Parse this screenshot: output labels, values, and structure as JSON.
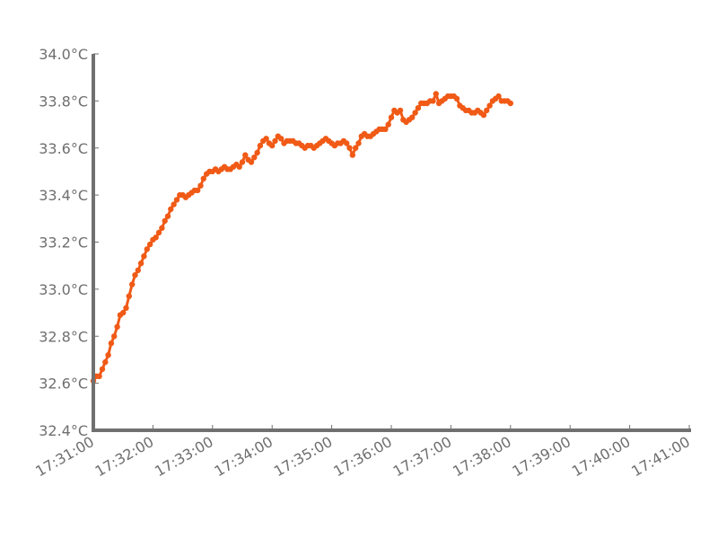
{
  "chart_data": {
    "type": "scatter",
    "title": "",
    "xlabel": "",
    "ylabel": "",
    "x_axis": {
      "type": "time",
      "range": [
        "17:31:00",
        "17:41:00"
      ],
      "ticks": [
        "17:31:00",
        "17:32:00",
        "17:33:00",
        "17:34:00",
        "17:35:00",
        "17:36:00",
        "17:37:00",
        "17:38:00",
        "17:39:00",
        "17:40:00",
        "17:41:00"
      ]
    },
    "y_axis": {
      "range": [
        32.4,
        34.0
      ],
      "ticks": [
        32.4,
        32.6,
        32.8,
        33.0,
        33.2,
        33.4,
        33.6,
        33.8,
        34.0
      ],
      "tick_labels": [
        "32.4°C",
        "32.6°C",
        "32.8°C",
        "33.0°C",
        "33.2°C",
        "33.4°C",
        "33.6°C",
        "33.8°C",
        "34.0°C"
      ]
    },
    "grid": false,
    "legend": "none",
    "series": [
      {
        "color": "#f05a16",
        "points": [
          [
            "17:31:00",
            32.61
          ],
          [
            "17:31:03",
            32.63
          ],
          [
            "17:31:06",
            32.63
          ],
          [
            "17:31:09",
            32.66
          ],
          [
            "17:31:12",
            32.69
          ],
          [
            "17:31:15",
            32.72
          ],
          [
            "17:31:18",
            32.77
          ],
          [
            "17:31:21",
            32.8
          ],
          [
            "17:31:24",
            32.84
          ],
          [
            "17:31:27",
            32.89
          ],
          [
            "17:31:30",
            32.9
          ],
          [
            "17:31:33",
            32.92
          ],
          [
            "17:31:36",
            32.97
          ],
          [
            "17:31:39",
            33.02
          ],
          [
            "17:31:42",
            33.06
          ],
          [
            "17:31:45",
            33.08
          ],
          [
            "17:31:48",
            33.11
          ],
          [
            "17:31:51",
            33.14
          ],
          [
            "17:31:54",
            33.17
          ],
          [
            "17:31:57",
            33.19
          ],
          [
            "17:32:00",
            33.21
          ],
          [
            "17:32:03",
            33.22
          ],
          [
            "17:32:06",
            33.24
          ],
          [
            "17:32:09",
            33.26
          ],
          [
            "17:32:12",
            33.29
          ],
          [
            "17:32:15",
            33.31
          ],
          [
            "17:32:18",
            33.34
          ],
          [
            "17:32:21",
            33.36
          ],
          [
            "17:32:24",
            33.38
          ],
          [
            "17:32:27",
            33.4
          ],
          [
            "17:32:30",
            33.4
          ],
          [
            "17:32:33",
            33.39
          ],
          [
            "17:32:36",
            33.4
          ],
          [
            "17:32:39",
            33.41
          ],
          [
            "17:32:42",
            33.42
          ],
          [
            "17:32:45",
            33.42
          ],
          [
            "17:32:48",
            33.44
          ],
          [
            "17:32:51",
            33.47
          ],
          [
            "17:32:54",
            33.49
          ],
          [
            "17:32:57",
            33.5
          ],
          [
            "17:33:00",
            33.5
          ],
          [
            "17:33:03",
            33.51
          ],
          [
            "17:33:06",
            33.5
          ],
          [
            "17:33:09",
            33.51
          ],
          [
            "17:33:12",
            33.52
          ],
          [
            "17:33:15",
            33.51
          ],
          [
            "17:33:18",
            33.51
          ],
          [
            "17:33:21",
            33.52
          ],
          [
            "17:33:24",
            33.53
          ],
          [
            "17:33:27",
            33.52
          ],
          [
            "17:33:30",
            33.54
          ],
          [
            "17:33:33",
            33.57
          ],
          [
            "17:33:36",
            33.55
          ],
          [
            "17:33:39",
            33.54
          ],
          [
            "17:33:42",
            33.56
          ],
          [
            "17:33:45",
            33.58
          ],
          [
            "17:33:48",
            33.61
          ],
          [
            "17:33:51",
            33.63
          ],
          [
            "17:33:54",
            33.64
          ],
          [
            "17:33:57",
            33.62
          ],
          [
            "17:34:00",
            33.61
          ],
          [
            "17:34:03",
            33.63
          ],
          [
            "17:34:06",
            33.65
          ],
          [
            "17:34:09",
            33.64
          ],
          [
            "17:34:12",
            33.62
          ],
          [
            "17:34:15",
            33.63
          ],
          [
            "17:34:18",
            33.63
          ],
          [
            "17:34:21",
            33.63
          ],
          [
            "17:34:24",
            33.62
          ],
          [
            "17:34:27",
            33.62
          ],
          [
            "17:34:30",
            33.61
          ],
          [
            "17:34:33",
            33.6
          ],
          [
            "17:34:36",
            33.61
          ],
          [
            "17:34:39",
            33.61
          ],
          [
            "17:34:42",
            33.6
          ],
          [
            "17:34:45",
            33.61
          ],
          [
            "17:34:48",
            33.62
          ],
          [
            "17:34:51",
            33.63
          ],
          [
            "17:34:54",
            33.64
          ],
          [
            "17:34:57",
            33.63
          ],
          [
            "17:35:00",
            33.62
          ],
          [
            "17:35:03",
            33.61
          ],
          [
            "17:35:06",
            33.62
          ],
          [
            "17:35:09",
            33.62
          ],
          [
            "17:35:12",
            33.63
          ],
          [
            "17:35:15",
            33.62
          ],
          [
            "17:35:18",
            33.6
          ],
          [
            "17:35:21",
            33.57
          ],
          [
            "17:35:24",
            33.6
          ],
          [
            "17:35:27",
            33.62
          ],
          [
            "17:35:30",
            33.65
          ],
          [
            "17:35:33",
            33.66
          ],
          [
            "17:35:36",
            33.65
          ],
          [
            "17:35:39",
            33.65
          ],
          [
            "17:35:42",
            33.66
          ],
          [
            "17:35:45",
            33.67
          ],
          [
            "17:35:48",
            33.68
          ],
          [
            "17:35:51",
            33.68
          ],
          [
            "17:35:54",
            33.68
          ],
          [
            "17:35:57",
            33.7
          ],
          [
            "17:36:00",
            33.73
          ],
          [
            "17:36:03",
            33.76
          ],
          [
            "17:36:06",
            33.75
          ],
          [
            "17:36:09",
            33.76
          ],
          [
            "17:36:12",
            33.72
          ],
          [
            "17:36:15",
            33.71
          ],
          [
            "17:36:18",
            33.72
          ],
          [
            "17:36:21",
            33.73
          ],
          [
            "17:36:24",
            33.75
          ],
          [
            "17:36:27",
            33.77
          ],
          [
            "17:36:30",
            33.79
          ],
          [
            "17:36:33",
            33.79
          ],
          [
            "17:36:36",
            33.79
          ],
          [
            "17:36:39",
            33.8
          ],
          [
            "17:36:42",
            33.8
          ],
          [
            "17:36:45",
            33.83
          ],
          [
            "17:36:48",
            33.79
          ],
          [
            "17:36:51",
            33.8
          ],
          [
            "17:36:54",
            33.81
          ],
          [
            "17:36:57",
            33.82
          ],
          [
            "17:37:00",
            33.82
          ],
          [
            "17:37:03",
            33.82
          ],
          [
            "17:37:06",
            33.81
          ],
          [
            "17:37:09",
            33.78
          ],
          [
            "17:37:12",
            33.77
          ],
          [
            "17:37:15",
            33.76
          ],
          [
            "17:37:18",
            33.76
          ],
          [
            "17:37:21",
            33.75
          ],
          [
            "17:37:24",
            33.75
          ],
          [
            "17:37:27",
            33.76
          ],
          [
            "17:37:30",
            33.75
          ],
          [
            "17:37:33",
            33.74
          ],
          [
            "17:37:36",
            33.76
          ],
          [
            "17:37:39",
            33.78
          ],
          [
            "17:37:42",
            33.8
          ],
          [
            "17:37:45",
            33.81
          ],
          [
            "17:37:48",
            33.82
          ],
          [
            "17:37:51",
            33.8
          ],
          [
            "17:37:54",
            33.8
          ],
          [
            "17:37:57",
            33.8
          ],
          [
            "17:38:00",
            33.79
          ]
        ]
      }
    ]
  }
}
